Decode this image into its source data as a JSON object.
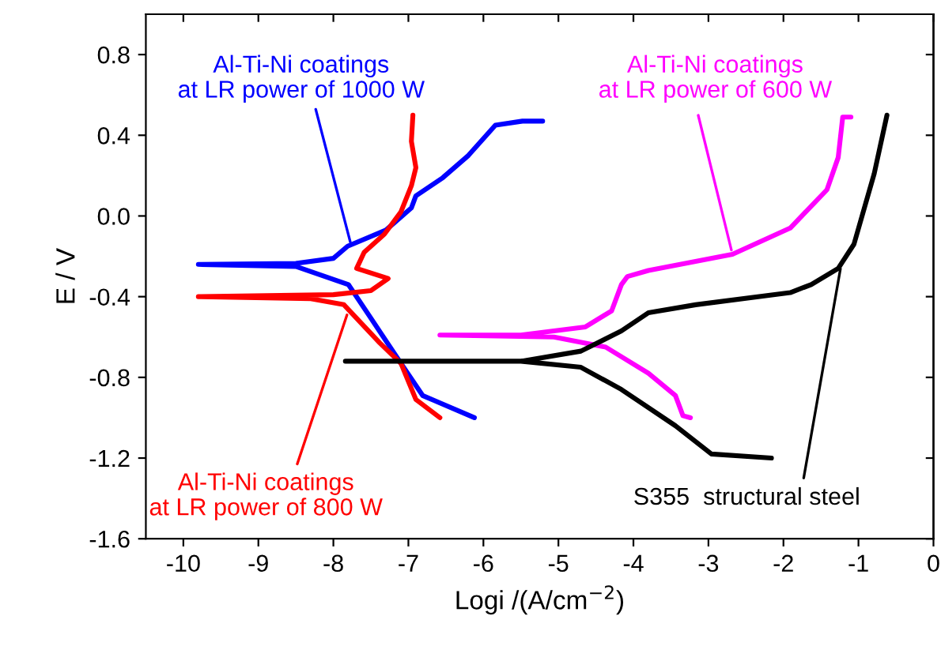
{
  "chart_data": {
    "type": "line",
    "xlabel": "Logi /(A/cm$^{−2}$)",
    "ylabel": "E / V",
    "xlim": [
      -10.5,
      0
    ],
    "ylim": [
      -1.6,
      1.0
    ],
    "xticks": [
      -10,
      -9,
      -8,
      -7,
      -6,
      -5,
      -4,
      -3,
      -2,
      -1,
      0
    ],
    "yticks": [
      {
        "value": 0.8,
        "label": "0.8"
      },
      {
        "value": 0.4,
        "label": "0.4"
      },
      {
        "value": 0,
        "label": "0.0"
      },
      {
        "value": -0.4,
        "label": "-0.4"
      },
      {
        "value": -0.8,
        "label": "-0.8"
      },
      {
        "value": -1.2,
        "label": "-1.2"
      },
      {
        "value": -1.6,
        "label": "-1.6"
      }
    ],
    "grid": false,
    "legend": false,
    "series": [
      {
        "name": "Al-Ti-Ni coatings\nat LR power of 1000 W",
        "color": "#0000ff",
        "x": [
          -6.12,
          -6.81,
          -7.1,
          -7.53,
          -7.8,
          -8.5,
          -9.8,
          -8.5,
          -8.0,
          -7.81,
          -7.3,
          -6.96,
          -6.9,
          -6.54,
          -6.2,
          -5.84,
          -5.48,
          -5.21
        ],
        "values": [
          -1.0,
          -0.89,
          -0.73,
          -0.49,
          -0.34,
          -0.25,
          -0.24,
          -0.235,
          -0.21,
          -0.15,
          -0.07,
          0.04,
          0.1,
          0.19,
          0.3,
          0.45,
          0.47,
          0.47
        ]
      },
      {
        "name": "Al-Ti-Ni coatings\nat LR power of 800 W",
        "color": "#ff0000",
        "x": [
          -6.58,
          -6.9,
          -7.1,
          -7.38,
          -7.86,
          -8.3,
          -9.8,
          -8.0,
          -7.5,
          -7.27,
          -7.69,
          -7.59,
          -7.32,
          -7.1,
          -6.96,
          -6.9,
          -6.96,
          -6.94
        ],
        "values": [
          -1.0,
          -0.91,
          -0.73,
          -0.63,
          -0.44,
          -0.41,
          -0.4,
          -0.39,
          -0.37,
          -0.31,
          -0.26,
          -0.18,
          -0.09,
          0.02,
          0.15,
          0.24,
          0.37,
          0.5
        ]
      },
      {
        "name": "Al-Ti-Ni coatings\nat LR power of 600 W",
        "color": "#ff00ff",
        "x": [
          -3.24,
          -3.34,
          -3.44,
          -3.8,
          -4.37,
          -5.06,
          -6.58,
          -5.5,
          -4.64,
          -4.29,
          -4.16,
          -4.08,
          -3.8,
          -2.68,
          -1.91,
          -1.42,
          -1.27,
          -1.21,
          -1.1
        ],
        "values": [
          -1.0,
          -0.99,
          -0.89,
          -0.78,
          -0.65,
          -0.6,
          -0.59,
          -0.59,
          -0.55,
          -0.47,
          -0.34,
          -0.3,
          -0.27,
          -0.19,
          -0.06,
          0.13,
          0.29,
          0.49,
          0.49
        ]
      },
      {
        "name": "S355  structural steel",
        "color": "#000000",
        "x": [
          -2.16,
          -2.96,
          -3.44,
          -4.16,
          -4.7,
          -5.5,
          -7.84,
          -5.5,
          -4.7,
          -4.16,
          -3.8,
          -3.17,
          -1.91,
          -1.63,
          -1.27,
          -1.06,
          -0.79,
          -0.62
        ],
        "values": [
          -1.2,
          -1.18,
          -1.04,
          -0.86,
          -0.75,
          -0.72,
          -0.72,
          -0.72,
          -0.67,
          -0.57,
          -0.48,
          -0.44,
          -0.38,
          -0.34,
          -0.26,
          -0.14,
          0.21,
          0.5
        ]
      }
    ]
  }
}
